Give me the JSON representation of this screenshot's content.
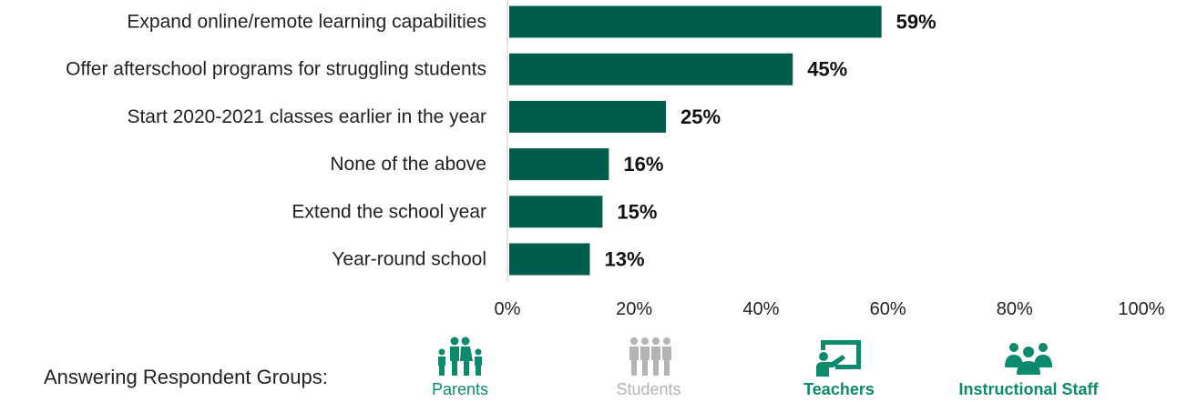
{
  "chart_data": {
    "type": "bar",
    "orientation": "horizontal",
    "categories": [
      "Expand online/remote learning capabilities",
      "Offer afterschool programs for struggling students",
      "Start 2020-2021 classes earlier in the year",
      "None of the above",
      "Extend the school year",
      "Year-round school"
    ],
    "values": [
      59,
      45,
      25,
      16,
      15,
      13
    ],
    "value_labels": [
      "59%",
      "45%",
      "25%",
      "16%",
      "15%",
      "13%"
    ],
    "xlim": [
      0,
      100
    ],
    "x_ticks": [
      "0%",
      "20%",
      "40%",
      "60%",
      "80%",
      "100%"
    ],
    "grid": false,
    "bar_color": "#005c4b"
  },
  "respondents": {
    "title": "Answering Respondent Groups:",
    "active_color": "#0c8a6c",
    "inactive_color": "#b4b4b4",
    "groups": [
      {
        "label": "Parents",
        "icon": "family-icon",
        "active": true
      },
      {
        "label": "Students",
        "icon": "students-icon",
        "active": false
      },
      {
        "label": "Teachers",
        "icon": "teacher-icon",
        "active": true
      },
      {
        "label": "Instructional Staff",
        "icon": "staff-group-icon",
        "active": true
      }
    ]
  }
}
